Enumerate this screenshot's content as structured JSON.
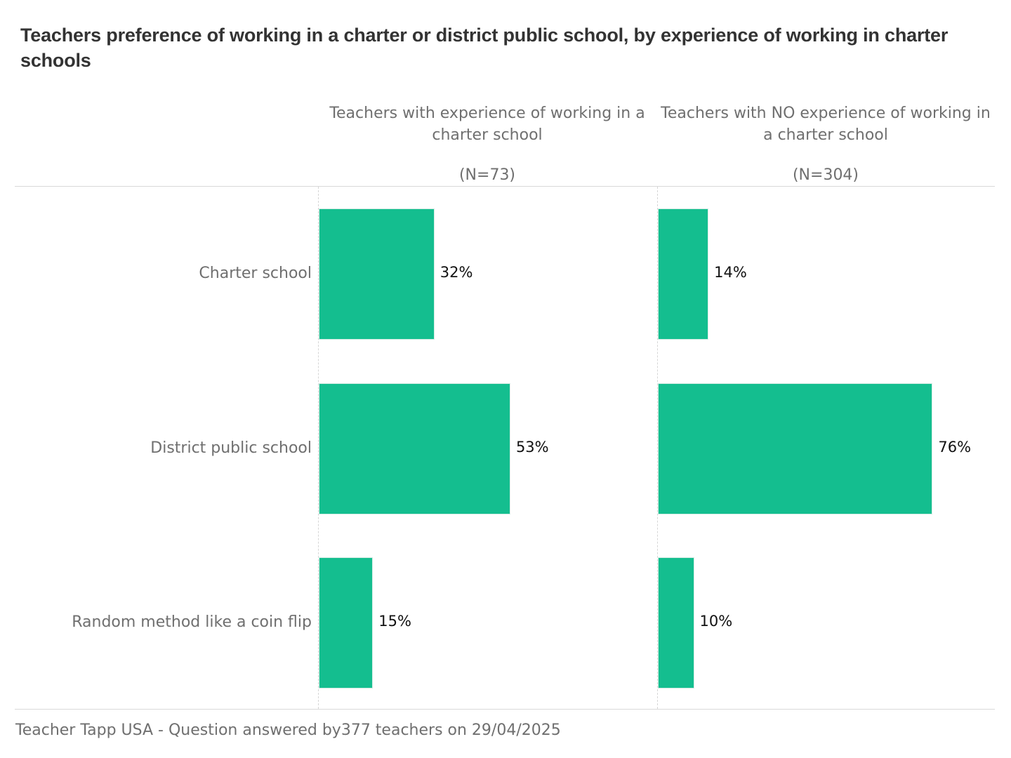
{
  "chart_data": {
    "type": "bar",
    "orientation": "horizontal",
    "title": "Teachers preference of working in a charter or district public school, by experience of working in charter schools",
    "categories": [
      "Charter school",
      "District public school",
      "Random method like a coin flip"
    ],
    "panels": [
      {
        "title": "Teachers with experience of working in a charter school",
        "n_label": "(N=73)",
        "values": [
          32,
          53,
          15
        ],
        "value_labels": [
          "32%",
          "53%",
          "15%"
        ]
      },
      {
        "title": "Teachers with NO experience of working in a charter school",
        "n_label": "(N=304)",
        "values": [
          14,
          76,
          10
        ],
        "value_labels": [
          "14%",
          "76%",
          "10%"
        ]
      }
    ],
    "value_unit": "%",
    "xlim": [
      0,
      100
    ],
    "bar_color": "#14be8f",
    "grid": false,
    "footer": "Teacher Tapp USA - Question answered by377 teachers on 29/04/2025"
  }
}
